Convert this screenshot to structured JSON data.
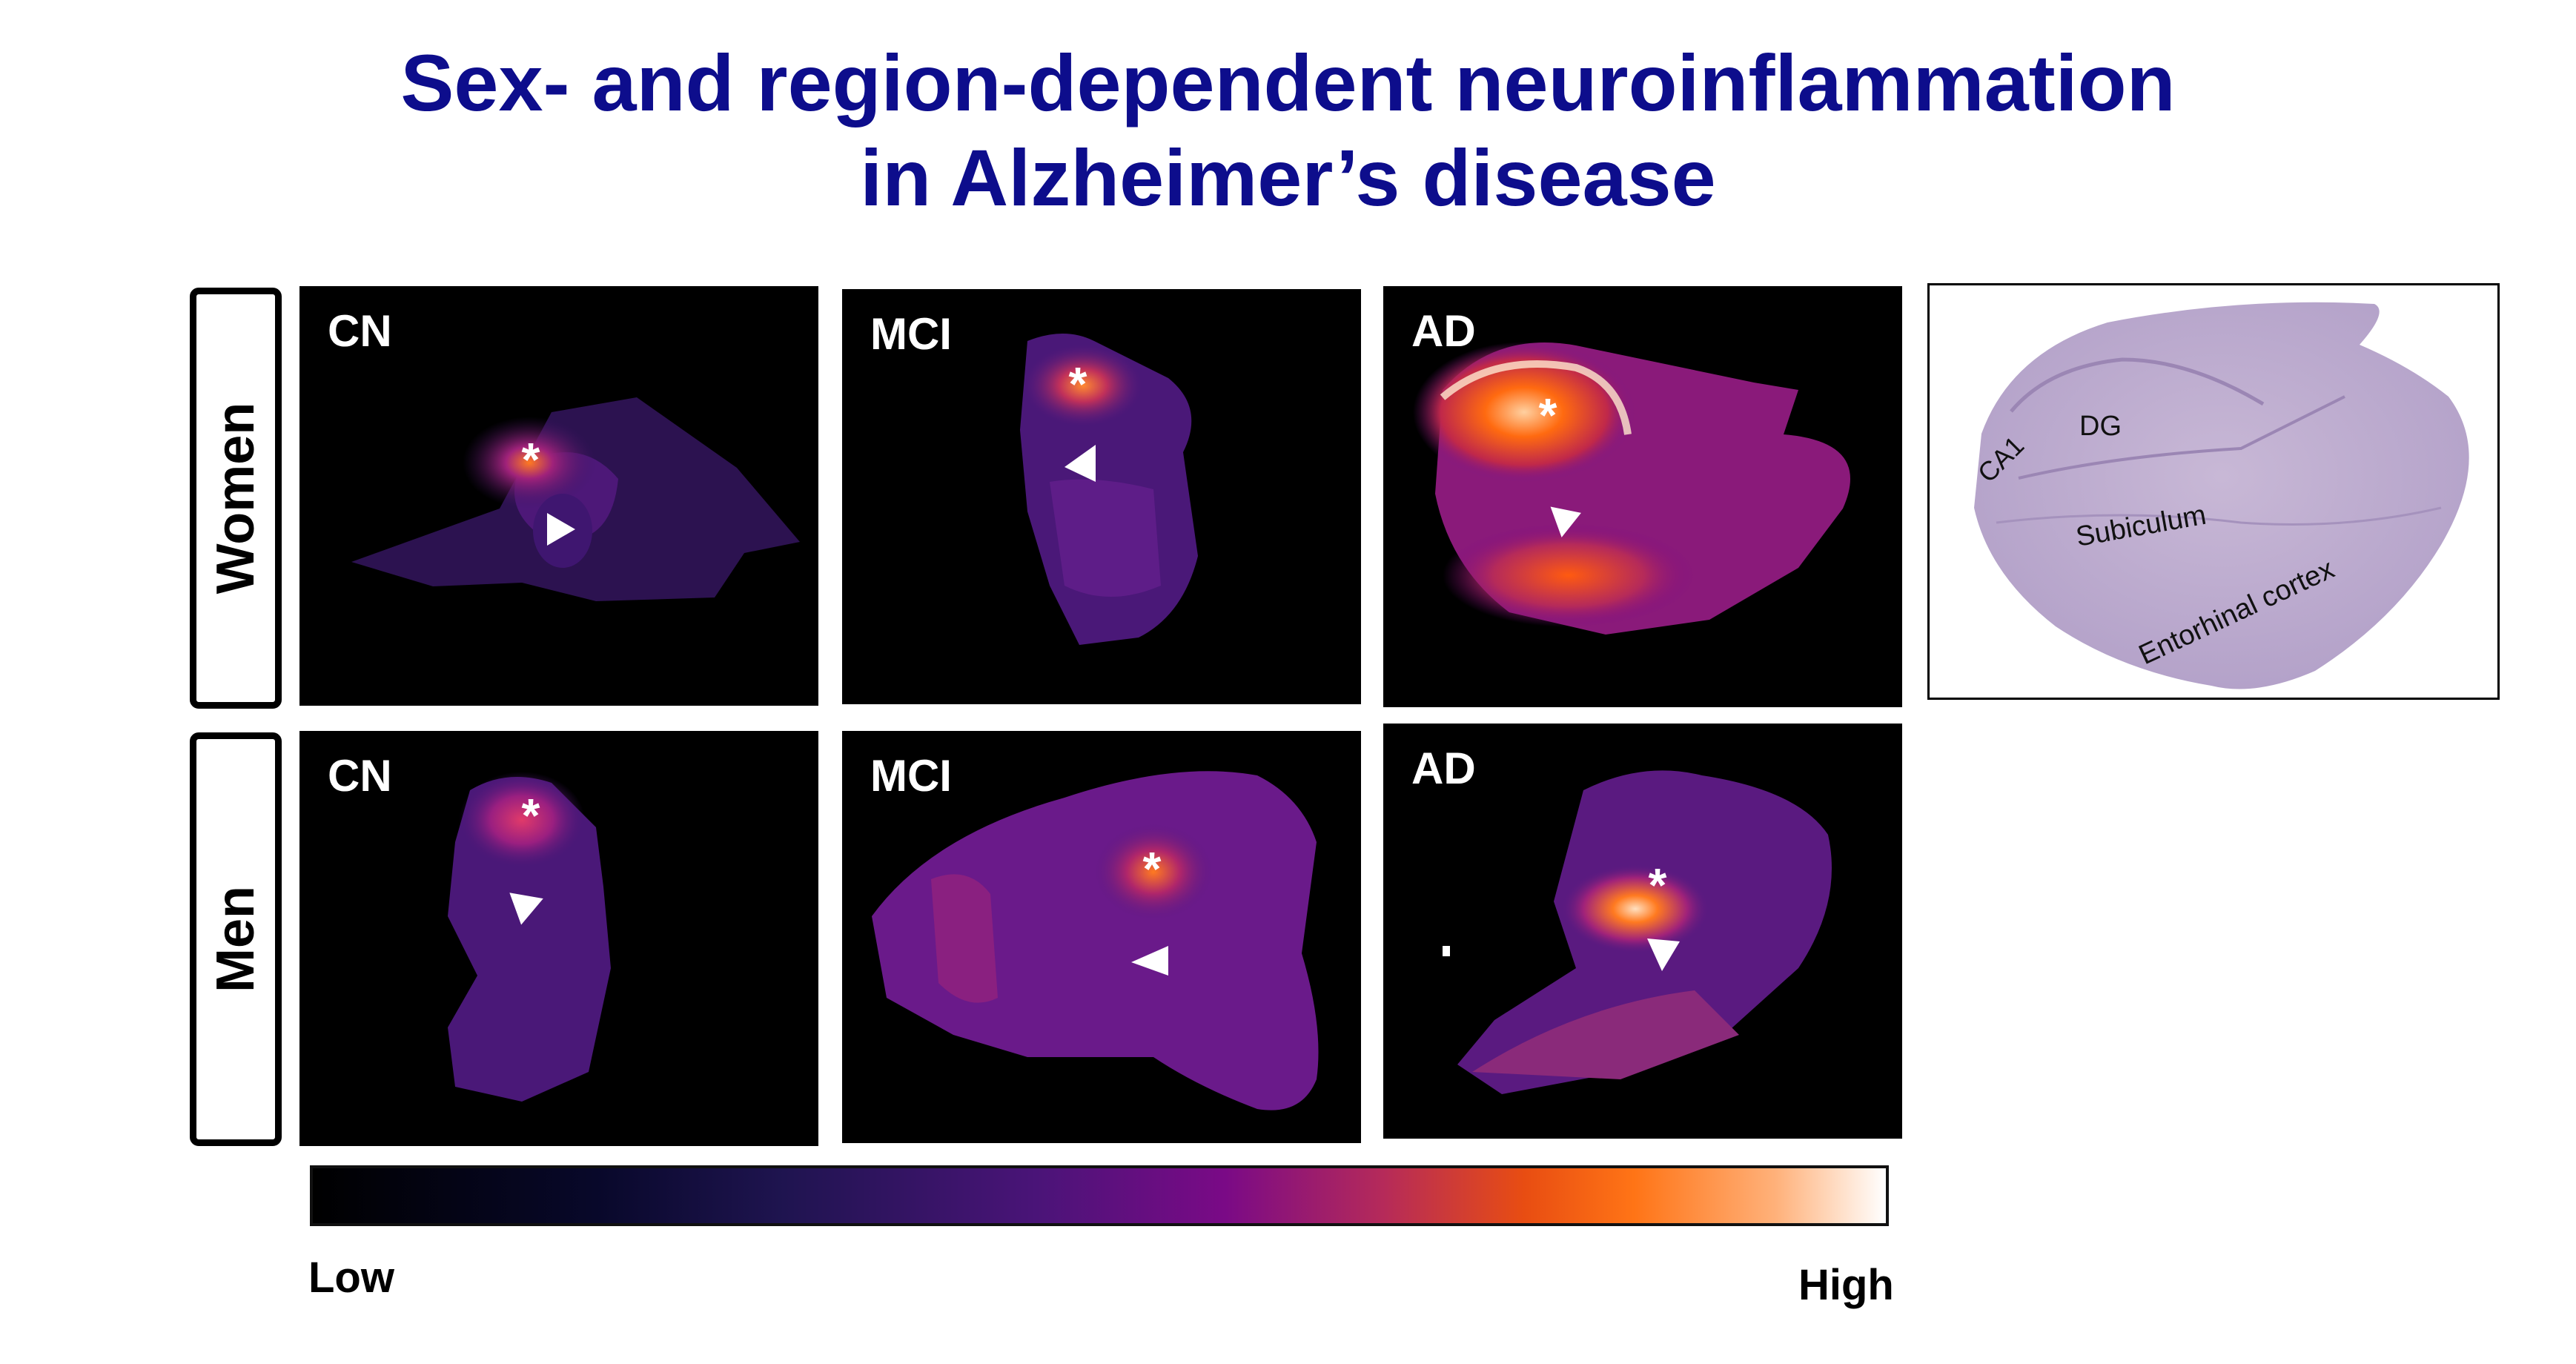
{
  "title": {
    "line1": "Sex- and region-dependent neuroinflammation",
    "line2": "in Alzheimer’s disease"
  },
  "rows": [
    {
      "label": "Women"
    },
    {
      "label": "Men"
    }
  ],
  "panels": {
    "women_cn": "CN",
    "women_mci": "MCI",
    "women_ad": "AD",
    "men_cn": "CN",
    "men_mci": "MCI",
    "men_ad": "AD"
  },
  "markers": {
    "asterisk": "*"
  },
  "reference": {
    "labels": {
      "ca1": "CA1",
      "dg": "DG",
      "subiculum": "Subiculum",
      "entorhinal": "Entorhinal cortex"
    }
  },
  "colorbar": {
    "low_label": "Low",
    "high_label": "High",
    "colors": [
      "#000000",
      "#1f1450",
      "#7a0a86",
      "#e84d12",
      "#ff7416",
      "#ffffff"
    ]
  }
}
